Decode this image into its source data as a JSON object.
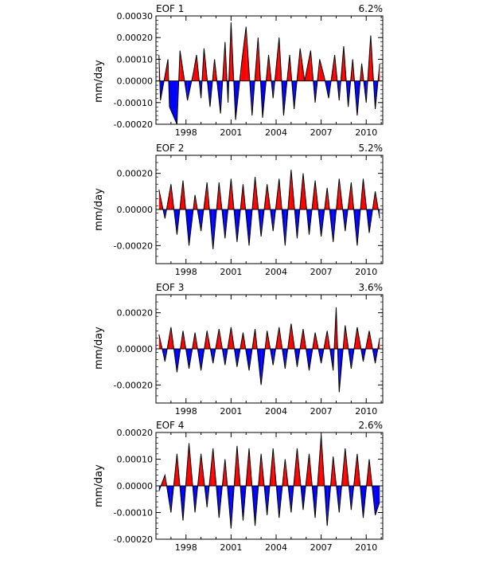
{
  "colors": {
    "positive": "#ff0000",
    "negative": "#0000ff",
    "line": "#000000",
    "background": "#ffffff"
  },
  "chart_data": [
    {
      "type": "area",
      "title": "EOF 1",
      "variance_label": "6.2%",
      "ylabel": "mm/day",
      "xlim": [
        1996.0,
        2011.1
      ],
      "ylim": [
        -0.0002,
        0.0003
      ],
      "x_ticks": [
        1998,
        2001,
        2004,
        2007,
        2010
      ],
      "y_ticks": [
        -0.0002,
        -0.0001,
        0.0,
        0.0001,
        0.0002,
        0.0003
      ],
      "y_tick_labels": [
        "-0.00020",
        "-0.00010",
        "0.00000",
        "0.00010",
        "0.00020",
        "0.00030"
      ],
      "grid": false,
      "x": [
        1996.2,
        1996.3,
        1996.8,
        1996.9,
        1997.4,
        1997.6,
        1998.1,
        1998.5,
        1998.7,
        1999.0,
        1999.2,
        1999.6,
        1999.9,
        2000.3,
        2000.6,
        2000.8,
        2001.0,
        2001.3,
        2001.7,
        2002.0,
        2002.4,
        2002.8,
        2003.1,
        2003.5,
        2003.8,
        2004.2,
        2004.5,
        2004.9,
        2005.2,
        2005.6,
        2005.9,
        2006.3,
        2006.6,
        2006.9,
        2007.2,
        2007.5,
        2007.9,
        2008.2,
        2008.5,
        2008.8,
        2009.1,
        2009.4,
        2009.7,
        2010.0,
        2010.3,
        2010.6,
        2010.9
      ],
      "y": [
        0.00012,
        -9e-05,
        0.0001,
        -0.00012,
        -0.0002,
        0.00014,
        -9e-05,
        4e-05,
        0.00012,
        -8e-05,
        0.00015,
        -0.00012,
        0.0001,
        -0.00015,
        0.00018,
        -0.0001,
        0.00027,
        -0.00018,
        8e-05,
        0.00025,
        -0.00016,
        0.0002,
        -0.00017,
        0.00012,
        -8e-05,
        0.0002,
        -0.00016,
        0.00012,
        -0.00013,
        0.00015,
        0.0,
        0.00014,
        -0.0001,
        0.0001,
        2e-05,
        -8e-05,
        0.00012,
        -9e-05,
        0.00016,
        -0.00012,
        0.0001,
        -0.00016,
        8e-05,
        -0.0001,
        0.00021,
        -0.00013,
        8e-05
      ]
    },
    {
      "type": "area",
      "title": "EOF 2",
      "variance_label": "5.2%",
      "ylabel": "mm/day",
      "xlim": [
        1996.0,
        2011.1
      ],
      "ylim": [
        -0.0003,
        0.0003
      ],
      "x_ticks": [
        1998,
        2001,
        2004,
        2007,
        2010
      ],
      "y_ticks": [
        -0.0002,
        0.0,
        0.0002
      ],
      "y_tick_labels": [
        "-0.00020",
        "0.00000",
        "0.00020"
      ],
      "grid": false,
      "x": [
        1996.2,
        1996.6,
        1997.0,
        1997.4,
        1997.8,
        1998.2,
        1998.6,
        1999.0,
        1999.4,
        1999.8,
        2000.2,
        2000.6,
        2001.0,
        2001.4,
        2001.8,
        2002.2,
        2002.6,
        2003.0,
        2003.4,
        2003.8,
        2004.2,
        2004.6,
        2005.0,
        2005.4,
        2005.8,
        2006.2,
        2006.6,
        2007.0,
        2007.4,
        2007.8,
        2008.2,
        2008.6,
        2009.0,
        2009.4,
        2009.8,
        2010.2,
        2010.6,
        2010.9
      ],
      "y": [
        0.00011,
        -5e-05,
        0.00014,
        -0.00014,
        0.00016,
        -0.0002,
        8e-05,
        -0.00012,
        0.00015,
        -0.00022,
        0.00015,
        -0.00016,
        0.00017,
        -0.00018,
        0.00014,
        -0.0002,
        0.00018,
        -0.00015,
        0.00014,
        -0.00012,
        0.00017,
        -0.0002,
        0.00022,
        -0.00016,
        0.0002,
        -0.00014,
        0.00016,
        -0.00015,
        0.00012,
        -0.00018,
        0.00017,
        -0.00012,
        0.00015,
        -0.0002,
        0.00017,
        -0.00013,
        0.0001,
        -5e-05
      ]
    },
    {
      "type": "area",
      "title": "EOF 3",
      "variance_label": "3.6%",
      "ylabel": "mm/day",
      "xlim": [
        1996.0,
        2011.1
      ],
      "ylim": [
        -0.0003,
        0.0003
      ],
      "x_ticks": [
        1998,
        2001,
        2004,
        2007,
        2010
      ],
      "y_ticks": [
        -0.0002,
        0.0,
        0.0002
      ],
      "y_tick_labels": [
        "-0.00020",
        "0.00000",
        "0.00020"
      ],
      "grid": false,
      "x": [
        1996.2,
        1996.6,
        1997.0,
        1997.4,
        1997.8,
        1998.2,
        1998.6,
        1999.0,
        1999.4,
        1999.8,
        2000.2,
        2000.6,
        2001.0,
        2001.4,
        2001.8,
        2002.2,
        2002.6,
        2003.0,
        2003.4,
        2003.8,
        2004.2,
        2004.6,
        2005.0,
        2005.4,
        2005.8,
        2006.2,
        2006.6,
        2007.0,
        2007.4,
        2007.8,
        2008.0,
        2008.2,
        2008.6,
        2009.0,
        2009.4,
        2009.8,
        2010.2,
        2010.6,
        2010.9
      ],
      "y": [
        8e-05,
        -7e-05,
        0.00012,
        -0.00013,
        0.0001,
        -0.00011,
        9e-05,
        -0.00012,
        0.0001,
        -8e-05,
        0.00011,
        -9e-05,
        0.00012,
        -0.0001,
        9e-05,
        -0.00012,
        0.00011,
        -0.0002,
        0.0001,
        -9e-05,
        0.00012,
        -0.00011,
        0.00014,
        -0.0001,
        0.00011,
        -0.00012,
        9e-05,
        -8e-05,
        0.0001,
        -0.00012,
        0.00023,
        -0.00024,
        0.00013,
        -0.00011,
        0.00012,
        -7e-05,
        0.0001,
        -8e-05,
        6e-05
      ]
    },
    {
      "type": "area",
      "title": "EOF 4",
      "variance_label": "2.6%",
      "ylabel": "mm/day",
      "xlim": [
        1996.0,
        2011.1
      ],
      "ylim": [
        -0.0002,
        0.0002
      ],
      "x_ticks": [
        1998,
        2001,
        2004,
        2007,
        2010
      ],
      "y_ticks": [
        -0.0002,
        -0.0001,
        0.0,
        0.0001,
        0.0002
      ],
      "y_tick_labels": [
        "-0.00020",
        "-0.00010",
        "0.00000",
        "0.00010",
        "0.00020"
      ],
      "grid": false,
      "x": [
        1996.2,
        1996.6,
        1997.0,
        1997.4,
        1997.8,
        1998.2,
        1998.6,
        1999.0,
        1999.4,
        1999.8,
        2000.2,
        2000.6,
        2001.0,
        2001.4,
        2001.8,
        2002.2,
        2002.6,
        2003.0,
        2003.4,
        2003.8,
        2004.2,
        2004.6,
        2005.0,
        2005.4,
        2005.8,
        2006.2,
        2006.6,
        2007.0,
        2007.4,
        2007.8,
        2008.2,
        2008.6,
        2009.0,
        2009.4,
        2009.8,
        2010.2,
        2010.6,
        2010.9
      ],
      "y": [
        -2e-05,
        4e-05,
        -0.0001,
        0.00012,
        -0.00013,
        0.00016,
        -0.0001,
        0.00012,
        -8e-05,
        0.00014,
        -0.00012,
        0.0001,
        -0.00016,
        0.00015,
        -0.00013,
        0.00014,
        -0.00015,
        0.00012,
        -0.00011,
        0.00014,
        -0.00012,
        0.0001,
        -0.0001,
        0.00014,
        -9e-05,
        0.00012,
        -0.00012,
        0.00019,
        -0.00015,
        0.00011,
        -0.0001,
        0.00014,
        -9e-05,
        0.00012,
        -0.00012,
        0.0001,
        -0.00011,
        -6e-05
      ]
    }
  ]
}
